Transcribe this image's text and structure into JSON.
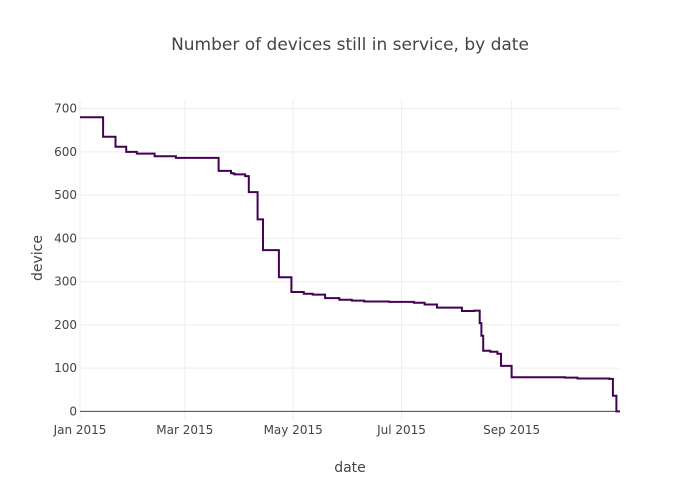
{
  "chart_data": {
    "type": "line",
    "line_shape": "step",
    "title": "Number of devices still in service, by date",
    "xlabel": "date",
    "ylabel": "device",
    "xlim": [
      "2015-01-01",
      "2015-11-01"
    ],
    "ylim": [
      -20,
      720
    ],
    "x_ticks": [
      {
        "date": "2015-01-01",
        "label": "Jan 2015"
      },
      {
        "date": "2015-03-01",
        "label": "Mar 2015"
      },
      {
        "date": "2015-05-01",
        "label": "May 2015"
      },
      {
        "date": "2015-07-01",
        "label": "Jul 2015"
      },
      {
        "date": "2015-09-01",
        "label": "Sep 2015"
      }
    ],
    "y_ticks": [
      0,
      100,
      200,
      300,
      400,
      500,
      600,
      700
    ],
    "grid": true,
    "legend": "none",
    "color": "#440154",
    "series": [
      {
        "x": [
          "2015-01-01",
          "2015-01-07",
          "2015-01-14",
          "2015-01-21",
          "2015-01-27",
          "2015-02-02",
          "2015-02-12",
          "2015-02-24",
          "2015-03-20",
          "2015-03-27",
          "2015-03-28",
          "2015-03-29",
          "2015-04-04",
          "2015-04-06",
          "2015-04-11",
          "2015-04-14",
          "2015-04-23",
          "2015-04-30",
          "2015-05-07",
          "2015-05-12",
          "2015-05-19",
          "2015-05-27",
          "2015-06-03",
          "2015-06-10",
          "2015-06-24",
          "2015-07-08",
          "2015-07-14",
          "2015-07-21",
          "2015-08-04",
          "2015-08-11",
          "2015-08-14",
          "2015-08-15",
          "2015-08-16",
          "2015-08-20",
          "2015-08-24",
          "2015-08-26",
          "2015-09-01",
          "2015-09-15",
          "2015-10-01",
          "2015-10-08",
          "2015-10-26",
          "2015-10-27",
          "2015-10-28",
          "2015-10-29",
          "2015-10-30",
          "2015-11-01"
        ],
        "y": [
          680,
          680,
          635,
          612,
          600,
          596,
          590,
          586,
          556,
          551,
          550,
          548,
          544,
          507,
          444,
          373,
          310,
          276,
          272,
          270,
          262,
          258,
          256,
          254,
          253,
          251,
          247,
          240,
          232,
          233,
          204,
          175,
          140,
          138,
          133,
          105,
          79,
          79,
          78,
          76,
          75,
          75,
          36,
          36,
          0,
          0
        ]
      }
    ]
  }
}
